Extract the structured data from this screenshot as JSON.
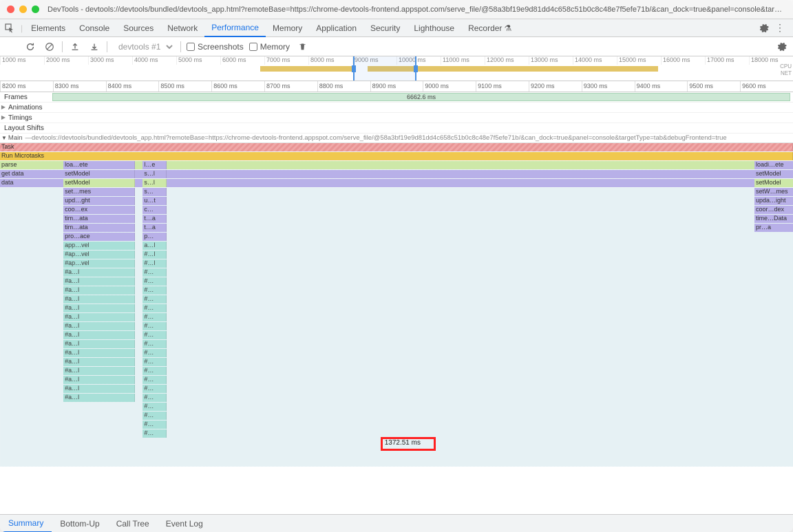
{
  "window": {
    "title": "DevTools - devtools://devtools/bundled/devtools_app.html?remoteBase=https://chrome-devtools-frontend.appspot.com/serve_file/@58a3bf19e9d81dd4c658c51b0c8c48e7f5efe71b/&can_dock=true&panel=console&targetType=tab&debugFrontend=true"
  },
  "panel_tabs": [
    "Elements",
    "Console",
    "Sources",
    "Network",
    "Performance",
    "Memory",
    "Application",
    "Security",
    "Lighthouse",
    "Recorder"
  ],
  "panel_active": "Performance",
  "recorder_badge": "⚗",
  "toolbar": {
    "profile_select": "devtools #1",
    "screenshots_label": "Screenshots",
    "memory_label": "Memory"
  },
  "overview": {
    "ticks": [
      "1000 ms",
      "2000 ms",
      "3000 ms",
      "4000 ms",
      "5000 ms",
      "6000 ms",
      "7000 ms",
      "8000 ms",
      "9000 ms",
      "10000 ms",
      "11000 ms",
      "12000 ms",
      "13000 ms",
      "14000 ms",
      "15000 ms",
      "16000 ms",
      "17000 ms",
      "18000 ms"
    ],
    "cpu_label": "CPU",
    "net_label": "NET",
    "bars": [
      {
        "left_pct": 34,
        "width_pct": 12,
        "color": "#e3c568"
      },
      {
        "left_pct": 48,
        "width_pct": 38,
        "color": "#e3c568"
      }
    ],
    "window_left_pct": 44.5,
    "window_width_pct": 8
  },
  "ruler_ticks": [
    "8200 ms",
    "8300 ms",
    "8400 ms",
    "8500 ms",
    "8600 ms",
    "8700 ms",
    "8800 ms",
    "8900 ms",
    "9000 ms",
    "9100 ms",
    "9200 ms",
    "9300 ms",
    "9400 ms",
    "9500 ms",
    "9600 ms"
  ],
  "tracks": {
    "frames": {
      "label": "Frames",
      "value": "6662.6 ms"
    },
    "animations": {
      "label": "Animations"
    },
    "timings": {
      "label": "Timings"
    },
    "layout_shifts": {
      "label": "Layout Shifts"
    }
  },
  "main_header": {
    "label": "Main",
    "url": "devtools://devtools/bundled/devtools_app.html?remoteBase=https://chrome-devtools-frontend.appspot.com/serve_file/@58a3bf19e9d81dd4c658c51b0c8c48e7f5efe71b/&can_dock=true&panel=console&targetType=tab&debugFrontend=true"
  },
  "flame": {
    "left_labels": [
      {
        "text": "Task",
        "color": "c-task"
      },
      {
        "text": "Run Microtasks",
        "color": "c-micro"
      },
      {
        "text": "parse",
        "color": "c-green"
      },
      {
        "text": "get data",
        "color": "c-purple"
      },
      {
        "text": "data",
        "color": "c-purple"
      }
    ],
    "col1_left_pct": 8,
    "col1_width_pct": 9,
    "col1": [
      "loa…ete",
      "setModel",
      "setModel",
      "set…mes",
      "upd…ght",
      "coo…ex",
      "tim…ata",
      "tim…ata",
      "pro…ace",
      "app…vel",
      "#ap…vel",
      "#ap…vel",
      "#a…l",
      "#a…l",
      "#a…l",
      "#a…l",
      "#a…l",
      "#a…l",
      "#a…l",
      "#a…l",
      "#a…l",
      "#a…l",
      "#a…l",
      "#a…l",
      "#a…l",
      "#a…l",
      "#a…l"
    ],
    "col2_left_pct": 18,
    "col2_width_pct": 3,
    "col2": [
      "l…e",
      "s…l",
      "s…l",
      "s…",
      "u…t",
      "c…",
      "t…a",
      "t…a",
      "p…",
      "a…l",
      "#…l",
      "#…l",
      "#…",
      "#…",
      "#…",
      "#…",
      "#…",
      "#…",
      "#…",
      "#…",
      "#…",
      "#…",
      "#…",
      "#…",
      "#…",
      "#…",
      "#…",
      "#…",
      "#…",
      "#…",
      "#…"
    ],
    "right_labels": [
      "loadi…ete",
      "setModel",
      "setModel",
      "setW…mes",
      "upda…ight",
      "coor…dex",
      "time…Data",
      "pr…a"
    ],
    "highlight": {
      "text": "1372.51 ms",
      "row": 33
    }
  },
  "bottom_tabs": [
    "Summary",
    "Bottom-Up",
    "Call Tree",
    "Event Log"
  ],
  "bottom_active": "Summary",
  "colors": {
    "selected_tab": "#1a73e8",
    "task": "#f0a8a8",
    "microtask": "#f0c84e",
    "script_green": "#cde8a8",
    "script_purple": "#b8b0e8",
    "rendering": "#a8e0d8",
    "highlight_border": "#ff2020"
  }
}
